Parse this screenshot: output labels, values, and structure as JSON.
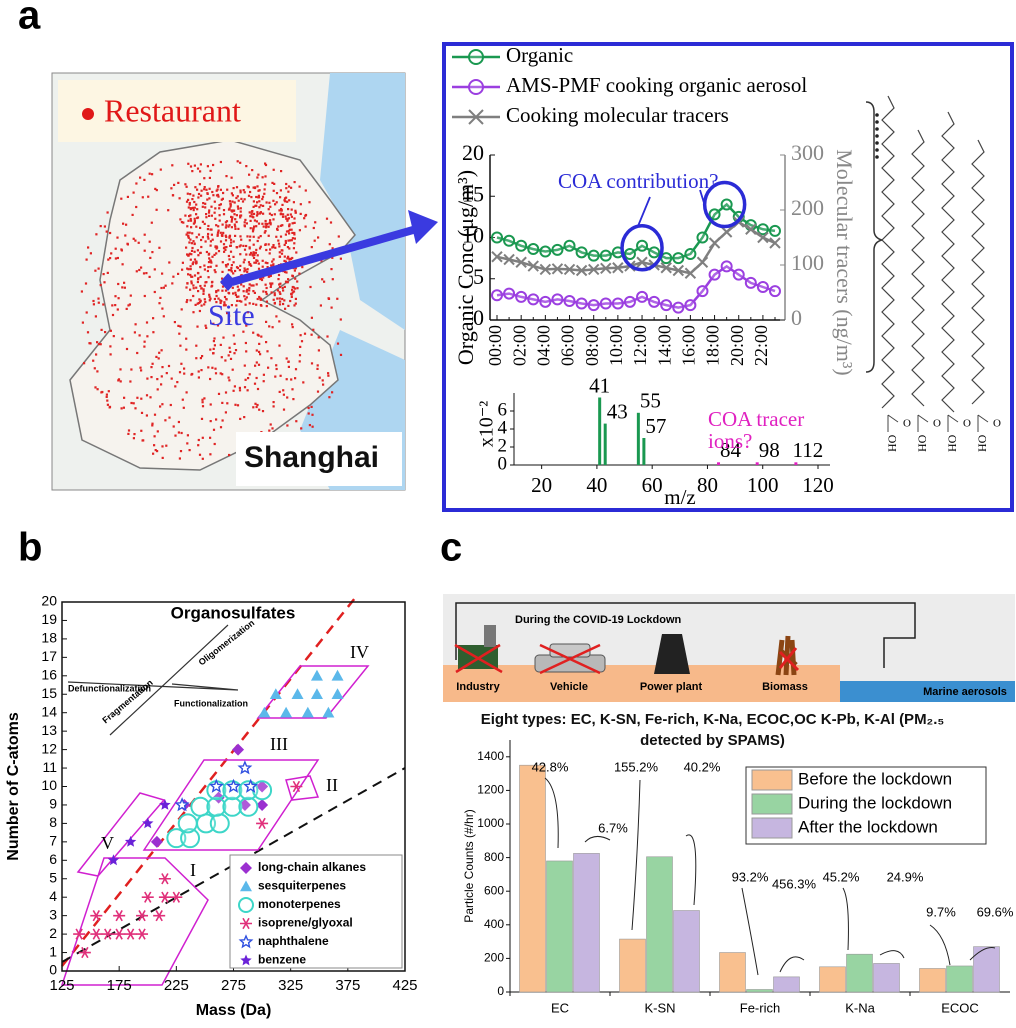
{
  "panel_labels": [
    "a",
    "b",
    "c"
  ],
  "map": {
    "legend": "Restaurant",
    "site": "Site",
    "region": "Shanghai"
  },
  "structures": {
    "hydroxyl": "HO",
    "carbonyl": "O"
  },
  "illustration": {
    "title": "During the COVID-19 Lockdown",
    "sources": [
      "Industry",
      "Vehicle",
      "Power plant",
      "Biomass",
      "Marine aerosols"
    ]
  },
  "chart_data": [
    {
      "type": "line",
      "ylabel": "Organic Conc (μg/m³)",
      "y2label": "Molecular tracers (ng/m³)",
      "annotation": "COA contribution?",
      "categories": [
        "00:00",
        null,
        "02:00",
        null,
        "04:00",
        null,
        "06:00",
        null,
        "08:00",
        null,
        "10:00",
        null,
        "12:00",
        null,
        "14:00",
        null,
        "16:00",
        null,
        "18:00",
        null,
        "20:00",
        null,
        "22:00",
        null
      ],
      "ylim": [
        0,
        20
      ],
      "yticks": [
        0,
        5,
        10,
        15,
        20
      ],
      "y2lim": [
        0,
        300
      ],
      "y2ticks": [
        0,
        100,
        200,
        300
      ],
      "series": [
        {
          "name": "Organic",
          "color": "#1a9850",
          "marker": "circle",
          "values": [
            10,
            9.6,
            9,
            8.6,
            8.3,
            8.5,
            9,
            8.2,
            7.8,
            7.8,
            8.2,
            8,
            9,
            8.2,
            7.5,
            7.5,
            8,
            10,
            12.8,
            14,
            12.5,
            11.5,
            11,
            10.8
          ]
        },
        {
          "name": "AMS-PMF cooking organic aerosol",
          "color": "#9b3fe0",
          "marker": "circle",
          "values": [
            3,
            3.2,
            2.8,
            2.5,
            2.2,
            2.5,
            2.3,
            2,
            1.8,
            2,
            2,
            2.2,
            2.8,
            2.2,
            1.8,
            1.5,
            1.8,
            3.5,
            5.5,
            6.5,
            5.5,
            4.5,
            4,
            3.5
          ]
        },
        {
          "name": "Cooking molecular tracers",
          "color": "#7f7f7f",
          "marker": "cross",
          "axis": "y2",
          "values": [
            115,
            110,
            105,
            98,
            92,
            93,
            92,
            90,
            92,
            94,
            95,
            98,
            105,
            100,
            95,
            90,
            85,
            105,
            140,
            160,
            178,
            165,
            150,
            140
          ]
        }
      ]
    },
    {
      "type": "bar",
      "ylabel": "x10⁻²",
      "xlabel": "m/z",
      "annotation": [
        "COA tracer",
        "ions?"
      ],
      "x": [
        41,
        43,
        55,
        57,
        84,
        98,
        112
      ],
      "values": [
        7.5,
        4.6,
        5.8,
        3.0,
        0.3,
        0.3,
        0.3
      ],
      "colors": [
        "#1a9850",
        "#1a9850",
        "#1a9850",
        "#1a9850",
        "#e020c0",
        "#e020c0",
        "#e020c0"
      ],
      "xlim": [
        10,
        120
      ],
      "xticks": [
        20,
        40,
        60,
        80,
        100,
        120
      ],
      "ylim": [
        0,
        8
      ],
      "yticks": [
        0,
        2,
        4,
        6
      ]
    },
    {
      "type": "scatter",
      "title": "Organosulfates",
      "xlabel": "Mass (Da)",
      "ylabel": "Number of C-atoms",
      "regions": [
        "I",
        "II",
        "III",
        "IV",
        "V"
      ],
      "processes": [
        "Defunctionalization",
        "Oligomerization",
        "Functionalization",
        "Fragmentation"
      ],
      "xlim": [
        125,
        425
      ],
      "xticks": [
        125,
        175,
        225,
        275,
        325,
        375,
        425
      ],
      "ylim": [
        0,
        20
      ],
      "yticks": [
        0,
        1,
        2,
        3,
        4,
        5,
        6,
        7,
        8,
        9,
        10,
        11,
        12,
        13,
        14,
        15,
        16,
        17,
        18,
        19,
        20
      ],
      "series": [
        {
          "name": "long-chain alkanes",
          "color": "#9b30d0",
          "marker": "diamond",
          "x": [
            208,
            232,
            262,
            279,
            285,
            300,
            300
          ],
          "values": [
            7,
            9,
            9.4,
            12,
            9,
            10,
            9
          ]
        },
        {
          "name": "sesquiterpenes",
          "color": "#5bb8ea",
          "marker": "triangle",
          "x": [
            302,
            321,
            340,
            358,
            312,
            331,
            348,
            366,
            348,
            366
          ],
          "values": [
            14,
            14,
            14,
            14,
            15,
            15,
            15,
            15,
            16,
            16
          ]
        },
        {
          "name": "monoterpenes",
          "color": "#3dd6c8",
          "marker": "circle",
          "x": [
            225,
            237,
            235,
            251,
            263,
            246,
            260,
            274,
            288,
            260,
            274,
            288,
            300
          ],
          "values": [
            7.2,
            7.2,
            8,
            8,
            8,
            8.9,
            8.9,
            8.9,
            8.9,
            9.8,
            9.8,
            9.8,
            9.8
          ]
        },
        {
          "name": "isoprene/glyoxal",
          "color": "#e0307a",
          "marker": "asterisk",
          "x": [
            140,
            145,
            155,
            155,
            165,
            175,
            175,
            185,
            195,
            195,
            200,
            210,
            215,
            215,
            225,
            300,
            330
          ],
          "values": [
            2,
            1,
            3,
            2,
            2,
            2,
            3,
            2,
            3,
            2,
            4,
            3,
            5,
            4,
            4,
            8,
            10
          ]
        },
        {
          "name": "naphthalene",
          "color": "#3050e0",
          "marker": "star-open",
          "x": [
            230,
            260,
            275,
            285,
            290
          ],
          "values": [
            9,
            10,
            10,
            11,
            10
          ]
        },
        {
          "name": "benzene",
          "color": "#6a22d8",
          "marker": "star",
          "x": [
            170,
            185,
            200,
            215
          ],
          "values": [
            6,
            7,
            8,
            9
          ]
        }
      ]
    },
    {
      "type": "bar",
      "title": "Eight types: EC, K-SN, Fe-rich, K-Na, ECOC,OC K-Pb, K-Al (PM₂.₅ detected by SPAMS)",
      "ylabel": "Particle Counts (#/hr)",
      "categories": [
        "EC",
        "K-SN",
        "Fe-rich",
        "K-Na",
        "ECOC"
      ],
      "ylim": [
        0,
        1500
      ],
      "yticks": [
        0,
        200,
        400,
        600,
        800,
        1000,
        1200,
        1400
      ],
      "series": [
        {
          "name": "Before the lockdown",
          "color": "#f9c08f",
          "values": [
            1350,
            315,
            235,
            150,
            140
          ]
        },
        {
          "name": "During the lockdown",
          "color": "#98d4a2",
          "values": [
            780,
            805,
            15,
            225,
            155
          ]
        },
        {
          "name": "After the lockdown",
          "color": "#c6b6e0",
          "values": [
            825,
            485,
            90,
            170,
            270
          ]
        }
      ],
      "annotations": [
        "42.8%",
        "6.7%",
        "155.2%",
        "40.2%",
        "93.2%",
        "456.3%",
        "45.2%",
        "24.9%",
        "9.7%",
        "69.6%"
      ]
    }
  ]
}
